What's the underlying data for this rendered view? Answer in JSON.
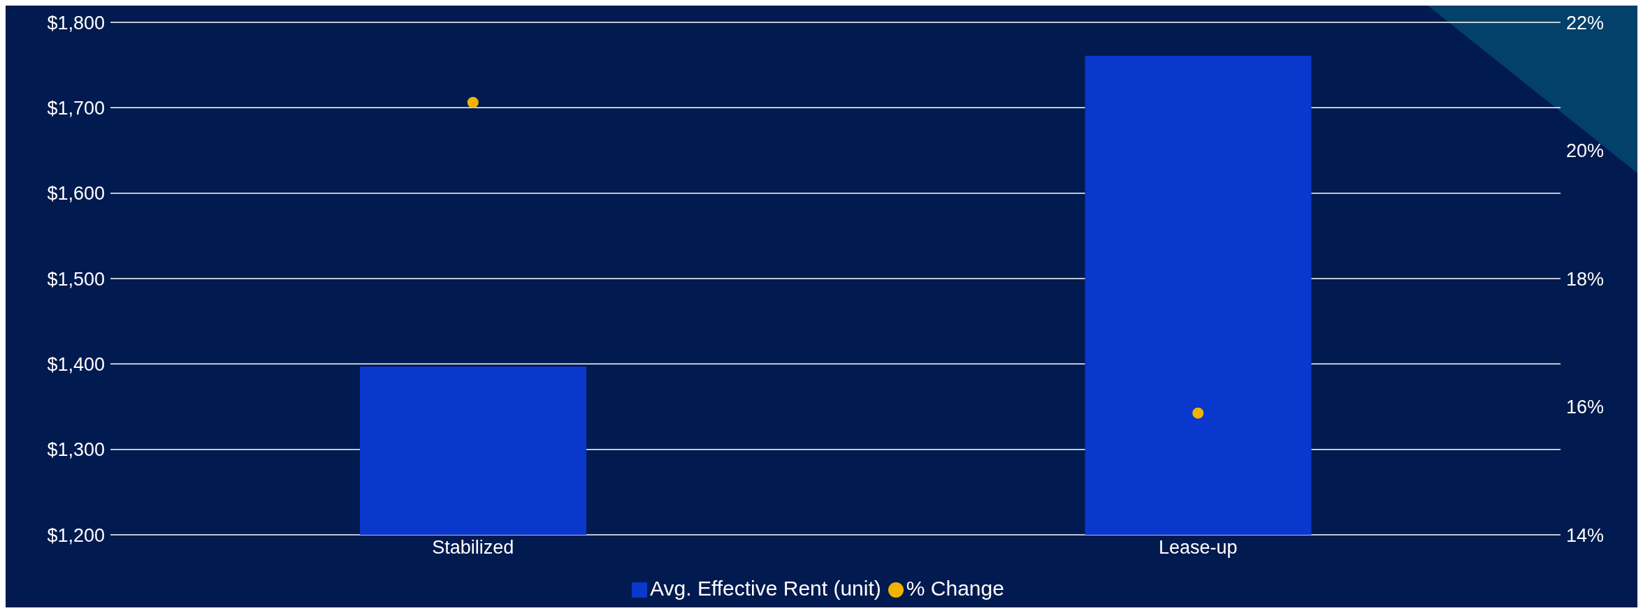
{
  "chart_data": {
    "type": "bar",
    "categories": [
      "Stabilized",
      "Lease-up"
    ],
    "series": [
      {
        "name": "Avg. Effective Rent (unit)",
        "color": "#0a37cc",
        "values": [
          1397,
          1761
        ]
      },
      {
        "name": "% Change",
        "type": "scatter",
        "axis": "y2",
        "color": "#f0b400",
        "values": [
          20.75,
          15.9
        ]
      }
    ],
    "ylim": [
      1200,
      1800
    ],
    "yticks": [
      {
        "value": 1200,
        "label": "$1,200"
      },
      {
        "value": 1300,
        "label": "$1,300"
      },
      {
        "value": 1400,
        "label": "$1,400"
      },
      {
        "value": 1500,
        "label": "$1,500"
      },
      {
        "value": 1600,
        "label": "$1,600"
      },
      {
        "value": 1700,
        "label": "$1,700"
      },
      {
        "value": 1800,
        "label": "$1,800"
      }
    ],
    "y2lim": [
      14,
      22
    ],
    "y2ticks": [
      {
        "value": 14,
        "label": "14%"
      },
      {
        "value": 16,
        "label": "16%"
      },
      {
        "value": 18,
        "label": "18%"
      },
      {
        "value": 20,
        "label": "20%"
      },
      {
        "value": 22,
        "label": "22%"
      }
    ],
    "grid": "y",
    "legend": "bottom",
    "marker": "circle"
  }
}
